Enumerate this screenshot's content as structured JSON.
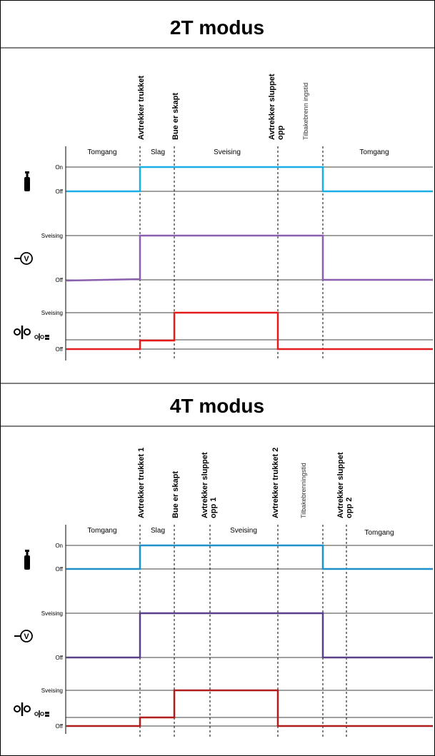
{
  "colors": {
    "gas": "#1aaee6",
    "voltage": "#8a5fb0",
    "current": "#e31b1b",
    "gas_4t": "#1e8fc8",
    "voltage_4t": "#5c3f8a",
    "current_4t": "#b01c1c"
  },
  "icons": [
    "gas-cylinder-icon",
    "voltage-icon",
    "contactor-icon",
    "contactor-small-icon"
  ],
  "panel_2t": {
    "title": "2T modus",
    "events": [
      {
        "lines": [
          "Avtrekker trukket"
        ],
        "style": "bold"
      },
      {
        "lines": [
          "Bue er skapt"
        ],
        "style": "bold"
      },
      {
        "lines": [
          "Avtrekker sluppet",
          "opp"
        ],
        "style": "bold"
      },
      {
        "lines": [
          "Tilbakebrenn ingstid"
        ],
        "style": "thin"
      }
    ],
    "phases": [
      "Tomgang",
      "Slag",
      "Sveising",
      "Tomgang"
    ],
    "gas": {
      "high": "On",
      "low": "Off"
    },
    "voltage": {
      "high": "Sveising",
      "low": "Off"
    },
    "current": {
      "high": "Sveising",
      "low": "Off"
    }
  },
  "panel_4t": {
    "title": "4T modus",
    "events": [
      {
        "lines": [
          "Avtrekker trukket 1"
        ],
        "style": "bold"
      },
      {
        "lines": [
          "Bue er skapt"
        ],
        "style": "bold"
      },
      {
        "lines": [
          "Avtrekker sluppet",
          "opp 1"
        ],
        "style": "bold"
      },
      {
        "lines": [
          "Avtrekker trukket 2"
        ],
        "style": "bold"
      },
      {
        "lines": [
          "Tilbakebrenningstid"
        ],
        "style": "thin"
      },
      {
        "lines": [
          "Avtrekker sluppet",
          "opp 2"
        ],
        "style": "bold"
      }
    ],
    "phases": [
      "Tomgang",
      "Slag",
      "Sveising",
      "Tomgang"
    ],
    "gas": {
      "high": "On",
      "low": "Off"
    },
    "voltage": {
      "high": "Sveising",
      "low": "Off"
    },
    "current": {
      "high": "Sveising",
      "low": "Off"
    }
  }
}
